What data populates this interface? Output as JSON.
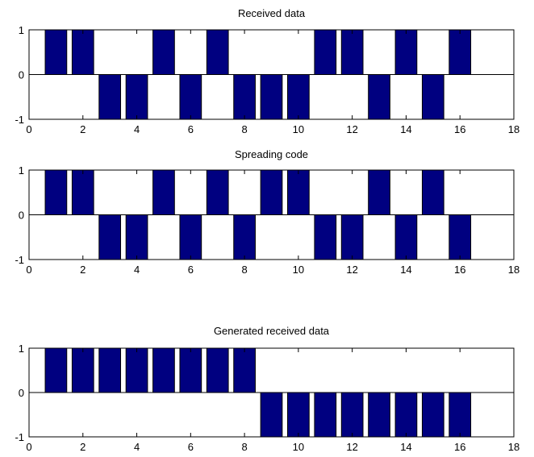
{
  "chart_data": [
    {
      "type": "bar",
      "title": "Received data",
      "x": [
        1,
        2,
        3,
        4,
        5,
        6,
        7,
        8,
        9,
        10,
        11,
        12,
        13,
        14,
        15,
        16
      ],
      "values": [
        1,
        1,
        -1,
        -1,
        1,
        -1,
        1,
        -1,
        -1,
        -1,
        1,
        1,
        -1,
        1,
        -1,
        1
      ],
      "xlim": [
        0,
        18
      ],
      "ylim": [
        -1,
        1
      ],
      "xticks": [
        0,
        2,
        4,
        6,
        8,
        10,
        12,
        14,
        16,
        18
      ],
      "yticks": [
        -1,
        0,
        1
      ],
      "bar_color": "#000080",
      "grid": false
    },
    {
      "type": "bar",
      "title": "Spreading code",
      "x": [
        1,
        2,
        3,
        4,
        5,
        6,
        7,
        8,
        9,
        10,
        11,
        12,
        13,
        14,
        15,
        16
      ],
      "values": [
        1,
        1,
        -1,
        -1,
        1,
        -1,
        1,
        -1,
        1,
        1,
        -1,
        -1,
        1,
        -1,
        1,
        -1
      ],
      "xlim": [
        0,
        18
      ],
      "ylim": [
        -1,
        1
      ],
      "xticks": [
        0,
        2,
        4,
        6,
        8,
        10,
        12,
        14,
        16,
        18
      ],
      "yticks": [
        -1,
        0,
        1
      ],
      "bar_color": "#000080",
      "grid": false
    },
    {
      "type": "bar",
      "title": "Generated received data",
      "x": [
        1,
        2,
        3,
        4,
        5,
        6,
        7,
        8,
        9,
        10,
        11,
        12,
        13,
        14,
        15,
        16
      ],
      "values": [
        1,
        1,
        1,
        1,
        1,
        1,
        1,
        1,
        -1,
        -1,
        -1,
        -1,
        -1,
        -1,
        -1,
        -1
      ],
      "xlim": [
        0,
        18
      ],
      "ylim": [
        -1,
        1
      ],
      "xticks": [
        0,
        2,
        4,
        6,
        8,
        10,
        12,
        14,
        16,
        18
      ],
      "yticks": [
        -1,
        0,
        1
      ],
      "bar_color": "#000080",
      "grid": false
    }
  ]
}
